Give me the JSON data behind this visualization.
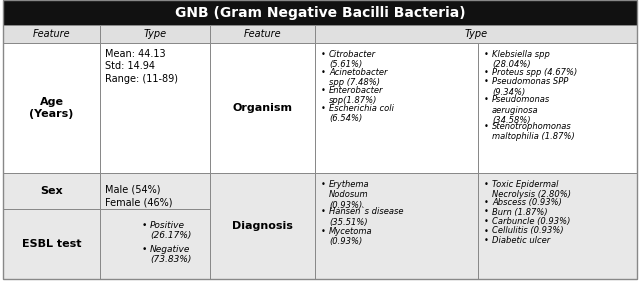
{
  "title": "GNB (Gram Negative Bacilli Bacteria)",
  "title_fontsize": 10,
  "title_bg": "#111111",
  "title_text_color": "#ffffff",
  "header_bg": "#e0e0e0",
  "cell_bg_white": "#ffffff",
  "cell_bg_gray": "#e8e8e8",
  "border_color": "#888888",
  "col_headers": [
    "Feature",
    "Type",
    "Feature",
    "Type"
  ],
  "row1_age_feature": "Age\n(Years)",
  "row1_age_type": "Mean: 44.13\nStd: 14.94\nRange: (11-89)",
  "row1_organism": "Organism",
  "row1_org_left": "Citrobacter\n(5.61%)\nAcinetobacter\nspp (7.48%)\nEnterobacter\nspp(1.87%)\nEscherichia coli\n(6.54%)",
  "row1_org_right": "Klebsiella spp\n(28.04%)\nProteus spp (4.67%)\nPseudomonas SPP\n(9.34%)\nPseudomonas\naeruginosa\n(34.58%)\nStenotrophomonas\nmaltophilia (1.87%)",
  "row2_sex_feature": "Sex",
  "row2_sex_type": "Male (54%)\nFemale (46%)",
  "row2_diagnosis": "Diagnosis",
  "row2_diag_left": "Erythema\nNodosum\n(0.93%)\nHansen`s disease\n(35.51%)\nMycetoma\n(0.93%)",
  "row2_diag_right": "Toxic Epidermal\nNecrolysis (2.80%)\nAbscess (0.93%)\nBurn (1.87%)\nCarbuncle (0.93%)\nCellulitis (0.93%)\nDiabetic ulcer",
  "row3_esbl_feature": "ESBL test",
  "row3_esbl_type_bullet1": "Positive\n(26.17%)",
  "row3_esbl_type_bullet2": "Negative\n(73.83%)"
}
